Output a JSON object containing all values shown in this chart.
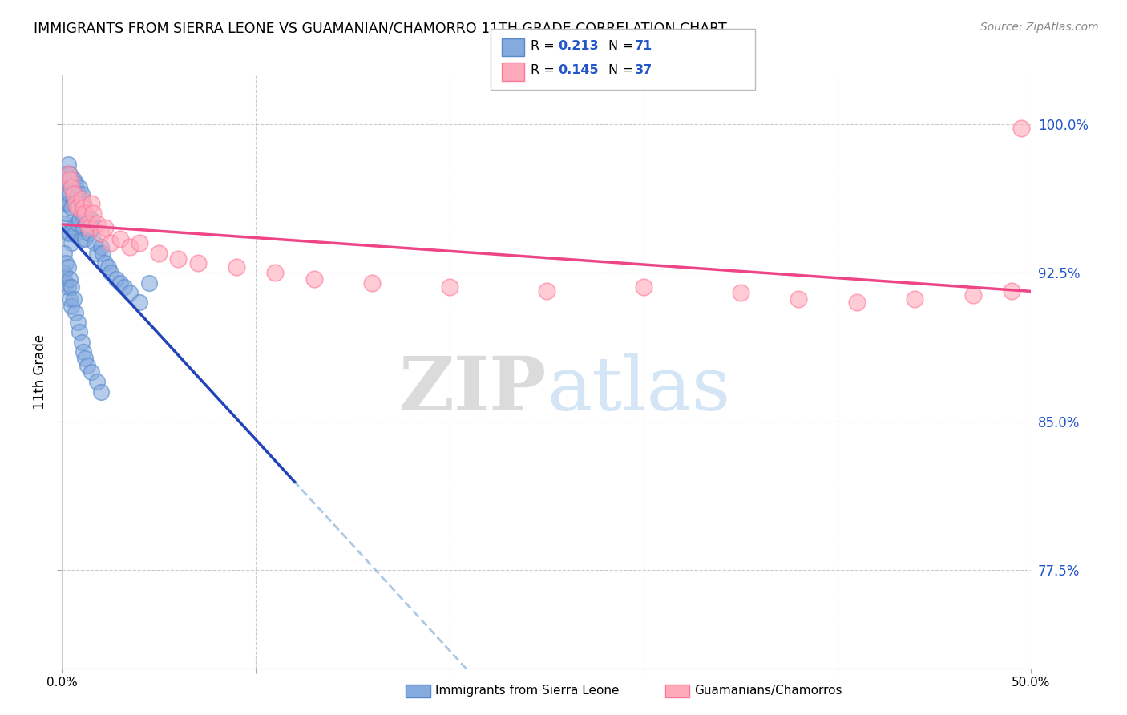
{
  "title": "IMMIGRANTS FROM SIERRA LEONE VS GUAMANIAN/CHAMORRO 11TH GRADE CORRELATION CHART",
  "source": "Source: ZipAtlas.com",
  "ylabel": "11th Grade",
  "ytick_labels": [
    "100.0%",
    "92.5%",
    "85.0%",
    "77.5%"
  ],
  "ytick_values": [
    1.0,
    0.925,
    0.85,
    0.775
  ],
  "xlim": [
    0.0,
    0.5
  ],
  "ylim": [
    0.725,
    1.025
  ],
  "blue_color": "#85AADD",
  "blue_edge_color": "#5588CC",
  "pink_color": "#FFAABB",
  "pink_edge_color": "#FF7799",
  "blue_line_color": "#2244BB",
  "pink_line_color": "#EE4488",
  "blue_dashed_color": "#99BBDD",
  "watermark_zip": "ZIP",
  "watermark_atlas": "atlas",
  "legend_items": [
    {
      "label": "R = 0.213  N = 71",
      "color": "#85AADD"
    },
    {
      "label": "R = 0.145  N = 37",
      "color": "#FFAABB"
    }
  ],
  "bottom_legend": [
    {
      "label": "Immigrants from Sierra Leone",
      "color": "#85AADD"
    },
    {
      "label": "Guamanians/Chamorros",
      "color": "#FFAABB"
    }
  ],
  "blue_x": [
    0.001,
    0.001,
    0.001,
    0.002,
    0.002,
    0.002,
    0.003,
    0.003,
    0.003,
    0.003,
    0.004,
    0.004,
    0.004,
    0.005,
    0.005,
    0.005,
    0.006,
    0.006,
    0.006,
    0.007,
    0.007,
    0.007,
    0.008,
    0.008,
    0.009,
    0.009,
    0.01,
    0.01,
    0.01,
    0.011,
    0.011,
    0.012,
    0.012,
    0.013,
    0.014,
    0.015,
    0.016,
    0.017,
    0.018,
    0.02,
    0.021,
    0.022,
    0.024,
    0.025,
    0.028,
    0.03,
    0.032,
    0.035,
    0.04,
    0.045,
    0.001,
    0.001,
    0.002,
    0.002,
    0.003,
    0.003,
    0.004,
    0.004,
    0.005,
    0.005,
    0.006,
    0.007,
    0.008,
    0.009,
    0.01,
    0.011,
    0.012,
    0.013,
    0.015,
    0.018,
    0.02
  ],
  "blue_y": [
    0.97,
    0.96,
    0.95,
    0.975,
    0.965,
    0.955,
    0.98,
    0.97,
    0.96,
    0.945,
    0.975,
    0.965,
    0.945,
    0.968,
    0.958,
    0.94,
    0.972,
    0.962,
    0.948,
    0.97,
    0.96,
    0.945,
    0.965,
    0.95,
    0.968,
    0.952,
    0.965,
    0.955,
    0.942,
    0.96,
    0.948,
    0.955,
    0.942,
    0.95,
    0.945,
    0.952,
    0.948,
    0.94,
    0.935,
    0.938,
    0.935,
    0.93,
    0.928,
    0.925,
    0.922,
    0.92,
    0.918,
    0.915,
    0.91,
    0.92,
    0.935,
    0.925,
    0.93,
    0.92,
    0.928,
    0.918,
    0.922,
    0.912,
    0.918,
    0.908,
    0.912,
    0.905,
    0.9,
    0.895,
    0.89,
    0.885,
    0.882,
    0.878,
    0.875,
    0.87,
    0.865
  ],
  "pink_x": [
    0.003,
    0.004,
    0.005,
    0.006,
    0.007,
    0.008,
    0.01,
    0.011,
    0.012,
    0.013,
    0.014,
    0.015,
    0.016,
    0.018,
    0.02,
    0.022,
    0.025,
    0.03,
    0.035,
    0.04,
    0.05,
    0.06,
    0.07,
    0.09,
    0.11,
    0.13,
    0.16,
    0.2,
    0.25,
    0.3,
    0.35,
    0.38,
    0.41,
    0.44,
    0.47,
    0.49,
    0.495
  ],
  "pink_y": [
    0.975,
    0.972,
    0.968,
    0.965,
    0.96,
    0.958,
    0.962,
    0.958,
    0.955,
    0.95,
    0.948,
    0.96,
    0.955,
    0.95,
    0.945,
    0.948,
    0.94,
    0.942,
    0.938,
    0.94,
    0.935,
    0.932,
    0.93,
    0.928,
    0.925,
    0.922,
    0.92,
    0.918,
    0.916,
    0.918,
    0.915,
    0.912,
    0.91,
    0.912,
    0.914,
    0.916,
    0.998
  ]
}
